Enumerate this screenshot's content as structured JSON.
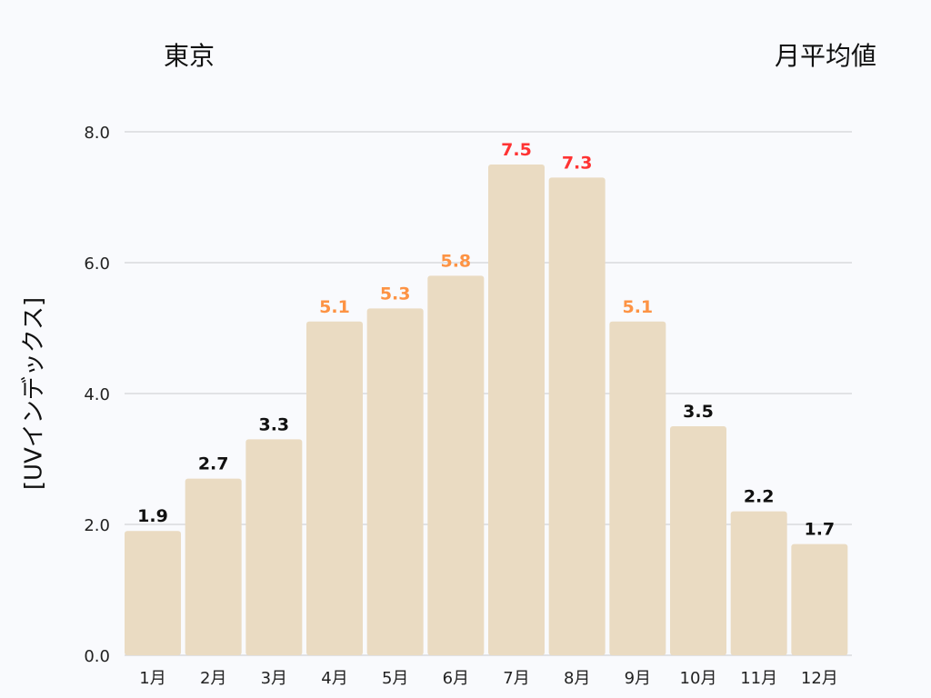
{
  "chart_data": {
    "type": "bar",
    "title_left": "東京",
    "title_right": "月平均値",
    "ylabel": "[UVインデックス]",
    "xlabel": "",
    "categories": [
      "1月",
      "2月",
      "3月",
      "4月",
      "5月",
      "6月",
      "7月",
      "8月",
      "9月",
      "10月",
      "11月",
      "12月"
    ],
    "values": [
      1.9,
      2.7,
      3.3,
      5.1,
      5.3,
      5.8,
      7.5,
      7.3,
      5.1,
      3.5,
      2.2,
      1.7
    ],
    "value_labels": [
      "1.9",
      "2.7",
      "3.3",
      "5.1",
      "5.3",
      "5.8",
      "7.5",
      "7.3",
      "5.1",
      "3.5",
      "2.2",
      "1.7"
    ],
    "ylim": [
      0,
      8
    ],
    "yticks": [
      "0.0",
      "2.0",
      "4.0",
      "6.0",
      "8.0"
    ],
    "grid": true,
    "colors": {
      "bar": "#eadbc2",
      "label_low": "#111111",
      "label_mid": "#fd9344",
      "label_high": "#ff3333",
      "grid": "#d9d9dd"
    }
  }
}
